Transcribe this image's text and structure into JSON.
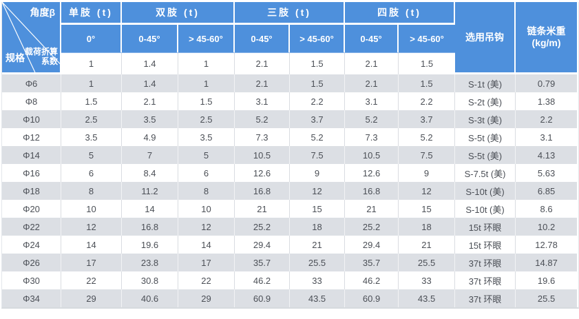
{
  "colors": {
    "header_blue": "#4e90dc",
    "stripe_gray": "#dcdfe4",
    "row_white": "#ffffff",
    "header_text": "#ffffff",
    "body_text": "#4b4f56",
    "grid_line": "#d9dce1"
  },
  "table": {
    "corner": {
      "angle_label": "角度β",
      "coef_label_line1": "载荷折算",
      "coef_label_line2": "系数",
      "spec_label": "规格"
    },
    "group_headers": [
      {
        "label": "单肢 (t)"
      },
      {
        "label": "双肢 (t)"
      },
      {
        "label": "三肢 (t)"
      },
      {
        "label": "四肢 (t)"
      }
    ],
    "angle_headers": [
      "0°",
      "0-45°",
      "> 45-60°",
      "0-45°",
      "> 45-60°",
      "0-45°",
      "> 45-60°"
    ],
    "hook_header": "选用吊钩",
    "weight_header": {
      "line1": "链条米重",
      "line2": "(kg/m)"
    },
    "coefficients": [
      "1",
      "1.4",
      "1",
      "2.1",
      "1.5",
      "2.1",
      "1.5"
    ],
    "rows": [
      {
        "spec": "Φ6",
        "values": [
          "1",
          "1.4",
          "1",
          "2.1",
          "1.5",
          "2.1",
          "1.5"
        ],
        "hook": "S-1t (美)",
        "weight": "0.79"
      },
      {
        "spec": "Φ8",
        "values": [
          "1.5",
          "2.1",
          "1.5",
          "3.1",
          "2.2",
          "3.1",
          "2.2"
        ],
        "hook": "S-2t (美)",
        "weight": "1.38"
      },
      {
        "spec": "Φ10",
        "values": [
          "2.5",
          "3.5",
          "2.5",
          "5.2",
          "3.7",
          "5.2",
          "3.7"
        ],
        "hook": "S-3t (美)",
        "weight": "2.2"
      },
      {
        "spec": "Φ12",
        "values": [
          "3.5",
          "4.9",
          "3.5",
          "7.3",
          "5.2",
          "7.3",
          "5.2"
        ],
        "hook": "S-5t (美)",
        "weight": "3.1"
      },
      {
        "spec": "Φ14",
        "values": [
          "5",
          "7",
          "5",
          "10.5",
          "7.5",
          "10.5",
          "7.5"
        ],
        "hook": "S-5t (美)",
        "weight": "4.13"
      },
      {
        "spec": "Φ16",
        "values": [
          "6",
          "8.4",
          "6",
          "12.6",
          "9",
          "12.6",
          "9"
        ],
        "hook": "S-7.5t (美)",
        "weight": "5.63"
      },
      {
        "spec": "Φ18",
        "values": [
          "8",
          "11.2",
          "8",
          "16.8",
          "12",
          "16.8",
          "12"
        ],
        "hook": "S-10t (美)",
        "weight": "6.85"
      },
      {
        "spec": "Φ20",
        "values": [
          "10",
          "14",
          "10",
          "21",
          "15",
          "21",
          "15"
        ],
        "hook": "S-10t (美)",
        "weight": "8.6"
      },
      {
        "spec": "Φ22",
        "values": [
          "12",
          "16.8",
          "12",
          "25.2",
          "18",
          "25.2",
          "18"
        ],
        "hook": "15t 环眼",
        "weight": "10.2"
      },
      {
        "spec": "Φ24",
        "values": [
          "14",
          "19.6",
          "14",
          "29.4",
          "21",
          "29.4",
          "21"
        ],
        "hook": "15t 环眼",
        "weight": "12.78"
      },
      {
        "spec": "Φ26",
        "values": [
          "17",
          "23.8",
          "17",
          "35.7",
          "25.5",
          "35.7",
          "25.5"
        ],
        "hook": "37t 环眼",
        "weight": "14.87"
      },
      {
        "spec": "Φ30",
        "values": [
          "22",
          "30.8",
          "22",
          "46.2",
          "33",
          "46.2",
          "33"
        ],
        "hook": "37t 环眼",
        "weight": "19.6"
      },
      {
        "spec": "Φ34",
        "values": [
          "29",
          "40.6",
          "29",
          "60.9",
          "43.5",
          "60.9",
          "43.5"
        ],
        "hook": "37t 环眼",
        "weight": "25.5"
      }
    ]
  }
}
